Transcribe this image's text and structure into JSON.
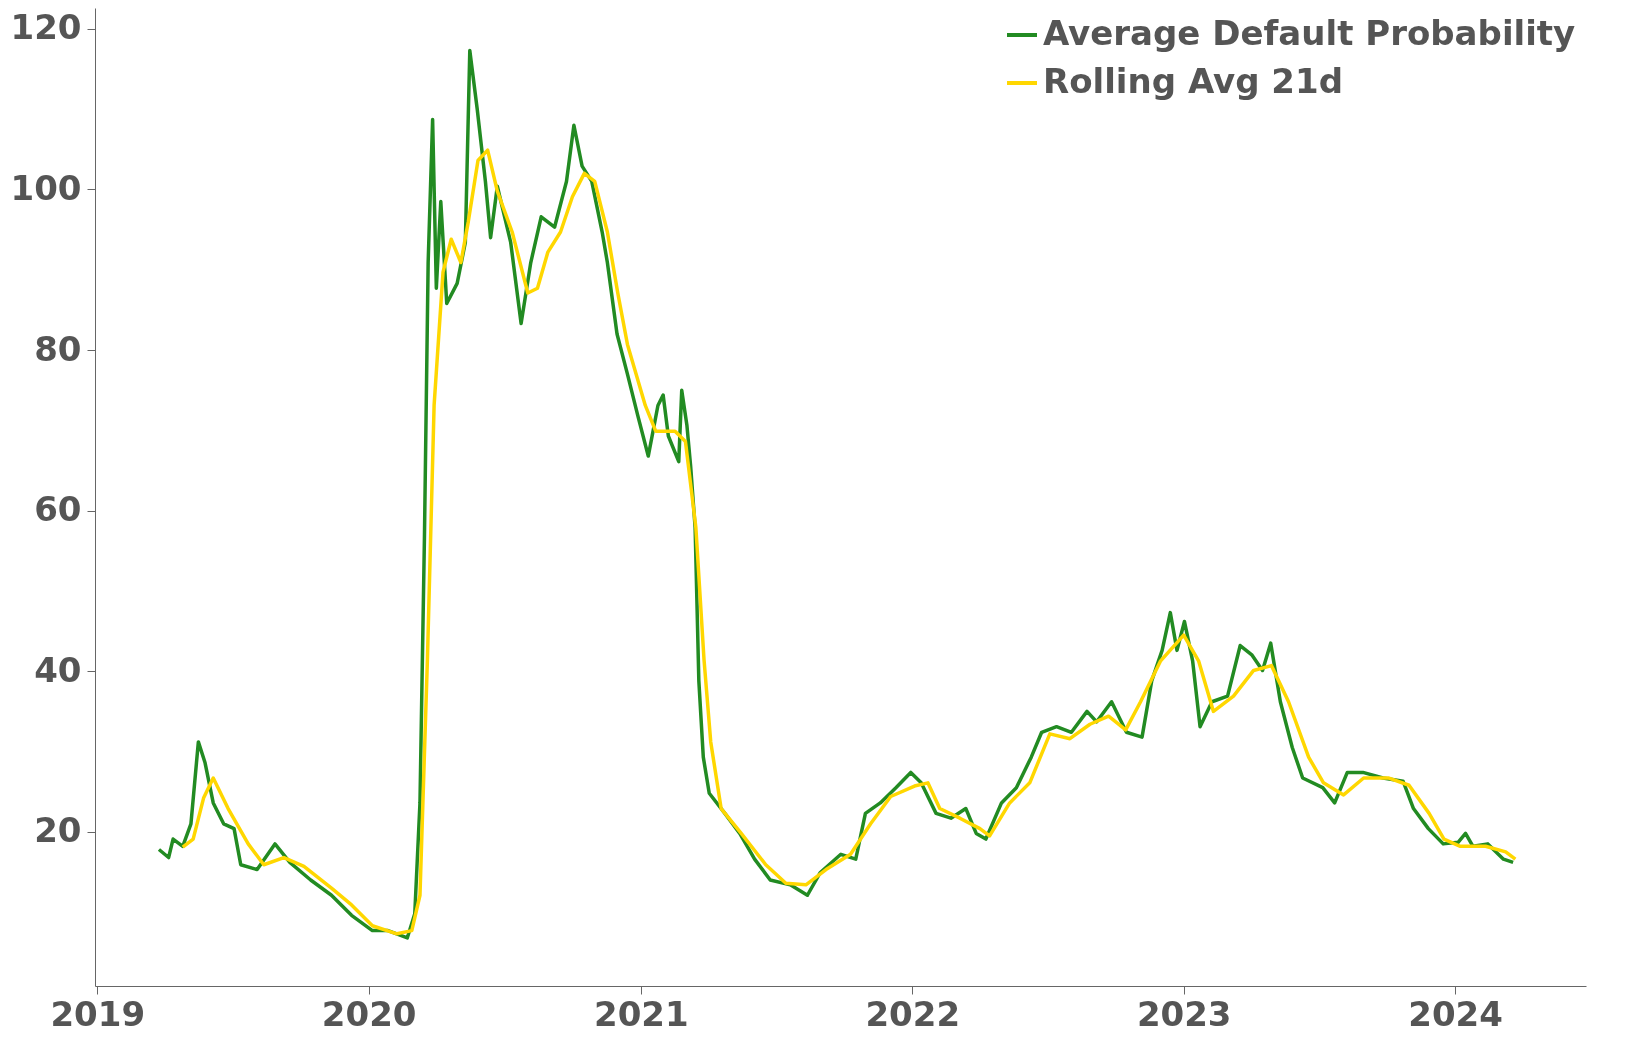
{
  "chart_data": {
    "type": "line",
    "xlim": [
      "2018-12-29",
      "2024-06-25"
    ],
    "xticks": [
      "2019",
      "2020",
      "2021",
      "2022",
      "2023",
      "2024"
    ],
    "ylim": [
      0.8,
      122.6
    ],
    "yticks": [
      20,
      40,
      60,
      80,
      100,
      120
    ],
    "legend": "top right",
    "series": [
      {
        "name": "Average Default Probability",
        "color": "#228b22",
        "x": [
          "2019-03-25",
          "2019-04-07",
          "2019-04-13",
          "2019-04-26",
          "2019-05-07",
          "2019-05-17",
          "2019-05-26",
          "2019-06-06",
          "2019-06-20",
          "2019-07-04",
          "2019-07-13",
          "2019-08-04",
          "2019-08-28",
          "2019-09-17",
          "2019-10-15",
          "2019-11-12",
          "2019-12-09",
          "2020-01-06",
          "2020-01-27",
          "2020-02-22",
          "2020-03-03",
          "2020-03-10",
          "2020-03-16",
          "2020-03-21",
          "2020-03-27",
          "2020-04-01",
          "2020-04-07",
          "2020-04-15",
          "2020-04-29",
          "2020-05-10",
          "2020-05-16",
          "2020-05-26",
          "2020-06-06",
          "2020-06-13",
          "2020-06-22",
          "2020-07-10",
          "2020-07-24",
          "2020-08-06",
          "2020-08-20",
          "2020-09-07",
          "2020-09-23",
          "2020-10-03",
          "2020-10-14",
          "2020-10-27",
          "2020-11-10",
          "2020-11-17",
          "2020-11-30",
          "2020-12-14",
          "2020-12-28",
          "2021-01-11",
          "2021-01-24",
          "2021-01-31",
          "2021-02-07",
          "2021-02-21",
          "2021-02-25",
          "2021-03-04",
          "2021-03-09",
          "2021-03-15",
          "2021-03-20",
          "2021-03-26",
          "2021-04-03",
          "2021-04-24",
          "2021-05-14",
          "2021-06-03",
          "2021-06-24",
          "2021-07-21",
          "2021-08-13",
          "2021-08-30",
          "2021-09-27",
          "2021-10-17",
          "2021-10-30",
          "2021-11-19",
          "2021-12-10",
          "2021-12-30",
          "2022-01-13",
          "2022-02-02",
          "2022-02-22",
          "2022-03-14",
          "2022-03-28",
          "2022-04-10",
          "2022-05-01",
          "2022-05-21",
          "2022-06-10",
          "2022-06-24",
          "2022-07-14",
          "2022-08-03",
          "2022-08-24",
          "2022-09-06",
          "2022-09-26",
          "2022-10-16",
          "2022-11-06",
          "2022-11-19",
          "2022-12-03",
          "2022-12-14",
          "2022-12-23",
          "2023-01-02",
          "2023-01-13",
          "2023-01-23",
          "2023-02-08",
          "2023-03-01",
          "2023-03-18",
          "2023-04-03",
          "2023-04-17",
          "2023-04-28",
          "2023-05-11",
          "2023-05-27",
          "2023-06-10",
          "2023-07-07",
          "2023-07-23",
          "2023-08-09",
          "2023-08-30",
          "2023-09-26",
          "2023-10-23",
          "2023-11-06",
          "2023-11-26",
          "2023-12-16",
          "2024-01-05",
          "2024-01-15",
          "2024-01-25",
          "2024-02-14",
          "2024-03-06",
          "2024-03-19"
        ],
        "values": [
          17.8,
          16.8,
          19.1,
          18.2,
          21,
          31.2,
          28.6,
          23.6,
          21,
          20.4,
          15.9,
          15.3,
          18.5,
          16.2,
          14,
          12.1,
          9.6,
          7.7,
          7.7,
          6.8,
          9.8,
          23.6,
          56.6,
          90.9,
          108.7,
          87.7,
          98.5,
          85.8,
          88.3,
          93.4,
          117.3,
          110,
          101,
          94,
          100.4,
          93.4,
          83.3,
          90.9,
          96.6,
          95.3,
          101,
          108,
          102.9,
          101,
          94.7,
          90.9,
          82,
          77,
          71.8,
          66.8,
          73.1,
          74.4,
          69.3,
          66.1,
          75,
          70.6,
          65.5,
          57.9,
          38.8,
          29.3,
          24.8,
          22.3,
          19.8,
          16.6,
          14,
          13.4,
          12.1,
          14.9,
          17.2,
          16.6,
          22.3,
          23.6,
          25.5,
          27.4,
          26.1,
          22.3,
          21.7,
          22.9,
          19.8,
          19.1,
          23.6,
          25.5,
          29.3,
          32.4,
          33.1,
          32.4,
          35,
          33.7,
          36.2,
          32.4,
          31.8,
          38.8,
          42.6,
          47.3,
          42.6,
          46.2,
          41.3,
          33.1,
          36.2,
          36.9,
          43.2,
          42,
          40.1,
          43.5,
          36.2,
          30.5,
          26.7,
          25.5,
          23.6,
          27.4,
          27.4,
          26.7,
          26.3,
          22.9,
          20.4,
          18.5,
          18.7,
          19.8,
          18.2,
          18.5,
          16.6,
          16.2
        ]
      },
      {
        "name": "Rolling Avg 21d",
        "color": "#ffd700",
        "x": [
          "2019-04-26",
          "2019-05-10",
          "2019-05-24",
          "2019-06-06",
          "2019-06-26",
          "2019-07-23",
          "2019-08-13",
          "2019-09-09",
          "2019-10-06",
          "2019-11-12",
          "2019-12-09",
          "2020-01-06",
          "2020-02-08",
          "2020-02-28",
          "2020-03-10",
          "2020-03-20",
          "2020-03-29",
          "2020-04-10",
          "2020-04-21",
          "2020-05-04",
          "2020-05-14",
          "2020-05-27",
          "2020-06-09",
          "2020-06-22",
          "2020-07-12",
          "2020-08-02",
          "2020-08-15",
          "2020-08-29",
          "2020-09-15",
          "2020-10-01",
          "2020-10-17",
          "2020-10-31",
          "2020-11-17",
          "2020-12-01",
          "2020-12-14",
          "2021-01-07",
          "2021-01-21",
          "2021-02-16",
          "2021-03-02",
          "2021-03-16",
          "2021-03-27",
          "2021-04-05",
          "2021-04-19",
          "2021-05-16",
          "2021-06-18",
          "2021-07-15",
          "2021-08-11",
          "2021-09-07",
          "2021-10-10",
          "2021-11-06",
          "2021-12-03",
          "2022-01-04",
          "2022-01-22",
          "2022-02-07",
          "2022-03-06",
          "2022-04-02",
          "2022-04-15",
          "2022-05-12",
          "2022-06-08",
          "2022-07-05",
          "2022-08-01",
          "2022-08-28",
          "2022-09-22",
          "2022-10-15",
          "2022-11-04",
          "2022-12-01",
          "2023-01-01",
          "2023-01-21",
          "2023-02-10",
          "2023-03-09",
          "2023-04-05",
          "2023-04-29",
          "2023-05-22",
          "2023-06-18",
          "2023-07-08",
          "2023-08-04",
          "2023-08-31",
          "2023-10-04",
          "2023-10-31",
          "2023-11-27",
          "2023-12-17",
          "2024-01-08",
          "2024-02-11",
          "2024-03-09",
          "2024-03-22"
        ],
        "values": [
          18.1,
          19.1,
          24.2,
          26.7,
          22.9,
          18.5,
          15.9,
          16.8,
          15.7,
          13,
          10.9,
          8.3,
          7.3,
          7.7,
          12.1,
          41.4,
          73.1,
          89.7,
          93.8,
          90.9,
          96,
          103.6,
          104.9,
          99.8,
          94.7,
          87.1,
          87.7,
          92.2,
          94.7,
          99.1,
          102,
          101,
          94.7,
          87.1,
          80.7,
          73.1,
          69.9,
          69.9,
          68.6,
          57.9,
          41.4,
          31.2,
          22.9,
          19.8,
          15.9,
          13.6,
          13.4,
          15.3,
          17.2,
          21,
          24.4,
          25.7,
          26.1,
          22.9,
          21.7,
          20.4,
          19.5,
          23.6,
          26.1,
          32.2,
          31.6,
          33.4,
          34.4,
          32.7,
          36.2,
          41.3,
          44.5,
          41.3,
          35,
          36.9,
          40.1,
          40.7,
          36.2,
          29.3,
          26.1,
          24.6,
          26.7,
          26.7,
          25.8,
          22.3,
          19.1,
          18.2,
          18.2,
          17.5,
          16.6
        ]
      }
    ]
  }
}
